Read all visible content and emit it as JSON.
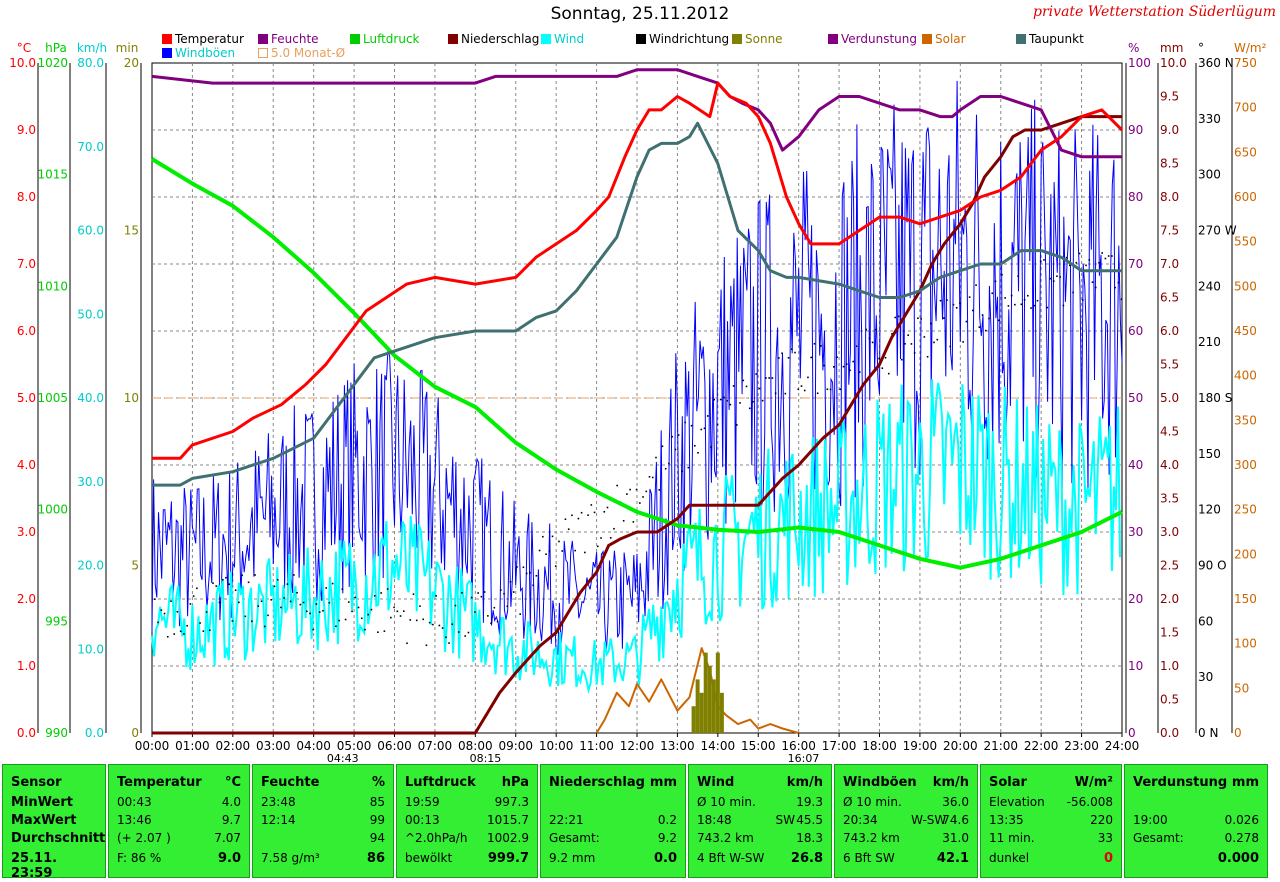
{
  "title": "Sonntag, 25.11.2012",
  "station": "private Wetterstation Süderlügum",
  "legend": [
    {
      "label": "Temperatur",
      "color": "#ff0000"
    },
    {
      "label": "Feuchte",
      "color": "#800080"
    },
    {
      "label": "Luftdruck",
      "color": "#00cc00"
    },
    {
      "label": "Niederschlag",
      "color": "#800000"
    },
    {
      "label": "Wind",
      "color": "#00ffff"
    },
    {
      "label": "Windrichtung",
      "color": "#000000"
    },
    {
      "label": "Sonne",
      "color": "#808000"
    },
    {
      "label": "Verdunstung",
      "color": "#800080"
    },
    {
      "label": "Solar",
      "color": "#cc6600"
    },
    {
      "label": "Taupunkt",
      "color": "#407070"
    },
    {
      "label": "Windböen",
      "color": "#0000ff"
    },
    {
      "label": "5.0 Monat-Ø",
      "color": "#e8a060"
    }
  ],
  "chart_data": {
    "type": "line",
    "x_ticks": [
      "00:00",
      "01:00",
      "02:00",
      "03:00",
      "04:00",
      "05:00",
      "06:00",
      "07:00",
      "08:00",
      "09:00",
      "10:00",
      "11:00",
      "12:00",
      "13:00",
      "14:00",
      "15:00",
      "16:00",
      "17:00",
      "18:00",
      "19:00",
      "20:00",
      "21:00",
      "22:00",
      "23:00",
      "24:00"
    ],
    "markers": [
      "04:43",
      "08:15",
      "16:07"
    ],
    "left_axes": [
      {
        "unit": "°C",
        "color": "#ff0000",
        "ticks": [
          "10.0",
          "9.0",
          "8.0",
          "7.0",
          "6.0",
          "5.0",
          "4.0",
          "3.0",
          "2.0",
          "1.0",
          "0.0"
        ]
      },
      {
        "unit": "hPa",
        "color": "#00cc00",
        "ticks": [
          "1020",
          "1015",
          "1010",
          "1005",
          "1000",
          "995",
          "990"
        ]
      },
      {
        "unit": "km/h",
        "color": "#00cccc",
        "ticks": [
          "80.0",
          "70.0",
          "60.0",
          "50.0",
          "40.0",
          "30.0",
          "20.0",
          "10.0",
          "0.0"
        ]
      },
      {
        "unit": "min",
        "color": "#808000",
        "ticks": [
          "20",
          "15",
          "10",
          "5",
          "0"
        ]
      }
    ],
    "right_axes": [
      {
        "unit": "%",
        "color": "#800080",
        "ticks": [
          "100",
          "90",
          "80",
          "70",
          "60",
          "50",
          "40",
          "30",
          "20",
          "10",
          "0"
        ]
      },
      {
        "unit": "mm",
        "color": "#800000",
        "ticks": [
          "10.0",
          "9.5",
          "9.0",
          "8.5",
          "8.0",
          "7.5",
          "7.0",
          "6.5",
          "6.0",
          "5.5",
          "5.0",
          "4.5",
          "4.0",
          "3.5",
          "3.0",
          "2.5",
          "2.0",
          "1.5",
          "1.0",
          "0.5",
          "0.0"
        ]
      },
      {
        "unit": "°",
        "color": "#000000",
        "ticks": [
          "360 N",
          "330",
          "300",
          "270 W",
          "240",
          "210",
          "180 S",
          "150",
          "120",
          "90 O",
          "60",
          "30",
          "0 N"
        ]
      },
      {
        "unit": "W/m²",
        "color": "#cc6600",
        "ticks": [
          "750",
          "700",
          "650",
          "600",
          "550",
          "500",
          "450",
          "400",
          "350",
          "300",
          "250",
          "200",
          "150",
          "100",
          "50",
          "0"
        ]
      }
    ],
    "month_avg_temp": 5.0,
    "series": [
      {
        "name": "Temperatur",
        "unit": "°C",
        "x": [
          0,
          0.7,
          1.0,
          2.0,
          2.5,
          3.2,
          3.8,
          4.3,
          4.8,
          5.3,
          5.8,
          6.3,
          7.0,
          8.0,
          9.0,
          9.5,
          10.0,
          10.5,
          11.0,
          11.3,
          11.7,
          12.0,
          12.3,
          12.6,
          13.0,
          13.3,
          13.8,
          14.0,
          14.3,
          14.7,
          15.0,
          15.3,
          15.7,
          16.0,
          16.3,
          16.7,
          17.0,
          17.5,
          18.0,
          18.5,
          19.0,
          19.5,
          20.0,
          20.5,
          21.0,
          21.5,
          22.0,
          22.5,
          23.0,
          23.5,
          24.0
        ],
        "y": [
          4.1,
          4.1,
          4.3,
          4.5,
          4.7,
          4.9,
          5.2,
          5.5,
          5.9,
          6.3,
          6.5,
          6.7,
          6.8,
          6.7,
          6.8,
          7.1,
          7.3,
          7.5,
          7.8,
          8.0,
          8.6,
          9.0,
          9.3,
          9.3,
          9.5,
          9.4,
          9.2,
          9.7,
          9.5,
          9.4,
          9.2,
          8.8,
          8.0,
          7.6,
          7.3,
          7.3,
          7.3,
          7.5,
          7.7,
          7.7,
          7.6,
          7.7,
          7.8,
          8.0,
          8.1,
          8.3,
          8.7,
          8.9,
          9.2,
          9.3,
          9.0
        ]
      },
      {
        "name": "Taupunkt",
        "unit": "°C",
        "x": [
          0,
          0.7,
          1.0,
          2.0,
          3.0,
          4.0,
          4.5,
          5.0,
          5.5,
          6.0,
          7.0,
          8.0,
          8.5,
          9.0,
          9.5,
          10.0,
          10.5,
          11.0,
          11.5,
          12.0,
          12.3,
          12.6,
          13.0,
          13.3,
          13.5,
          14.0,
          14.5,
          15.0,
          15.3,
          15.7,
          16.0,
          17.0,
          17.5,
          18.0,
          18.5,
          19.0,
          19.5,
          20.0,
          20.5,
          21.0,
          21.5,
          22.0,
          22.5,
          23.0,
          23.5,
          24.0
        ],
        "y": [
          3.7,
          3.7,
          3.8,
          3.9,
          4.1,
          4.4,
          4.8,
          5.2,
          5.6,
          5.7,
          5.9,
          6.0,
          6.0,
          6.0,
          6.2,
          6.3,
          6.6,
          7.0,
          7.4,
          8.3,
          8.7,
          8.8,
          8.8,
          8.9,
          9.1,
          8.5,
          7.5,
          7.2,
          6.9,
          6.8,
          6.8,
          6.7,
          6.6,
          6.5,
          6.5,
          6.6,
          6.8,
          6.9,
          7.0,
          7.0,
          7.2,
          7.2,
          7.1,
          6.9,
          6.9,
          6.9
        ]
      },
      {
        "name": "Feuchte",
        "unit": "%",
        "x": [
          0,
          1.5,
          2.0,
          4.0,
          6.0,
          8.0,
          8.5,
          10.0,
          11.5,
          12.0,
          12.5,
          13.0,
          13.5,
          14.0,
          14.3,
          14.6,
          15.0,
          15.3,
          15.6,
          16.0,
          16.5,
          17.0,
          17.5,
          18.0,
          18.5,
          19.0,
          19.5,
          19.8,
          20.0,
          20.5,
          21.0,
          21.5,
          22.0,
          22.5,
          23.0,
          23.5,
          24.0
        ],
        "y": [
          98,
          97,
          97,
          97,
          97,
          97,
          98,
          98,
          98,
          99,
          99,
          99,
          98,
          97,
          95,
          94,
          93,
          91,
          87,
          89,
          93,
          95,
          95,
          94,
          93,
          93,
          92,
          92,
          93,
          95,
          95,
          94,
          93,
          87,
          86,
          86,
          86
        ]
      },
      {
        "name": "Luftdruck",
        "unit": "hPa",
        "x": [
          0,
          1.0,
          2.0,
          3.0,
          4.0,
          5.0,
          6.0,
          7.0,
          8.0,
          9.0,
          10.0,
          11.0,
          12.0,
          13.0,
          14.0,
          15.0,
          16.0,
          17.0,
          18.0,
          19.0,
          20.0,
          21.0,
          22.0,
          23.0,
          24.0
        ],
        "y": [
          1015.7,
          1014.6,
          1013.6,
          1012.2,
          1010.6,
          1008.8,
          1006.9,
          1005.5,
          1004.6,
          1003.0,
          1001.8,
          1000.8,
          999.9,
          999.3,
          999.1,
          999.0,
          999.2,
          999.0,
          998.4,
          997.8,
          997.4,
          997.8,
          998.4,
          999.0,
          999.9
        ]
      },
      {
        "name": "Niederschlag",
        "unit": "mm",
        "x": [
          0,
          8.0,
          8.3,
          8.6,
          9.0,
          9.3,
          9.6,
          10.0,
          10.3,
          10.6,
          11.0,
          11.3,
          11.6,
          12.0,
          12.5,
          13.0,
          13.3,
          13.6,
          14.0,
          14.5,
          15.0,
          15.3,
          15.6,
          16.0,
          16.3,
          16.6,
          17.0,
          17.3,
          17.6,
          18.0,
          18.3,
          18.6,
          19.0,
          19.3,
          19.6,
          20.0,
          20.3,
          20.6,
          21.0,
          21.3,
          21.6,
          22.0,
          22.5,
          23.0,
          24.0
        ],
        "y": [
          0,
          0,
          0.3,
          0.6,
          0.9,
          1.1,
          1.3,
          1.5,
          1.8,
          2.1,
          2.4,
          2.8,
          2.9,
          3.0,
          3.0,
          3.2,
          3.4,
          3.4,
          3.4,
          3.4,
          3.4,
          3.6,
          3.8,
          4.0,
          4.2,
          4.4,
          4.6,
          4.9,
          5.2,
          5.5,
          5.9,
          6.2,
          6.6,
          7.0,
          7.3,
          7.6,
          7.9,
          8.3,
          8.6,
          8.9,
          9.0,
          9.0,
          9.1,
          9.2,
          9.2
        ]
      },
      {
        "name": "Wind",
        "unit": "km/h",
        "x": [
          0,
          1,
          2,
          3,
          4,
          5,
          6,
          7,
          8,
          9,
          10,
          11,
          12,
          13,
          14,
          15,
          16,
          17,
          18,
          19,
          20,
          21,
          22,
          23,
          24
        ],
        "y": [
          14,
          12,
          14,
          15,
          16,
          18,
          20,
          17,
          13,
          10,
          9,
          8,
          9,
          18,
          22,
          24,
          26,
          27,
          30,
          31,
          32,
          30,
          28,
          27,
          29
        ]
      },
      {
        "name": "Windböen",
        "unit": "km/h",
        "x": [
          0,
          1,
          2,
          3,
          4,
          5,
          6,
          7,
          8,
          9,
          10,
          11,
          12,
          13,
          14,
          15,
          16,
          17,
          18,
          19,
          20,
          21,
          22,
          23,
          24
        ],
        "y": [
          22,
          21,
          23,
          26,
          28,
          31,
          32,
          29,
          24,
          19,
          17,
          15,
          16,
          33,
          41,
          45,
          47,
          49,
          52,
          54,
          56,
          54,
          52,
          50,
          53
        ]
      },
      {
        "name": "Windrichtung",
        "unit": "°",
        "x": [
          0,
          1,
          2,
          3,
          4,
          5,
          6,
          7,
          8,
          9,
          10,
          11,
          12,
          13,
          14,
          15,
          16,
          17,
          18,
          19,
          20,
          21,
          22,
          23,
          24
        ],
        "y": [
          65,
          68,
          70,
          72,
          70,
          68,
          65,
          60,
          62,
          75,
          100,
          115,
          130,
          150,
          170,
          185,
          195,
          200,
          205,
          215,
          225,
          235,
          240,
          245,
          245
        ]
      },
      {
        "name": "Solar",
        "unit": "W/m²",
        "x": [
          11.0,
          11.2,
          11.5,
          11.8,
          12.0,
          12.3,
          12.6,
          13.0,
          13.3,
          13.6,
          13.8,
          14.0,
          14.2,
          14.5,
          14.8,
          15.0,
          15.3,
          15.6,
          16.0
        ],
        "y": [
          0,
          15,
          45,
          30,
          55,
          35,
          60,
          25,
          40,
          95,
          70,
          30,
          20,
          10,
          15,
          5,
          10,
          5,
          0
        ]
      },
      {
        "name": "Sonne",
        "unit": "min",
        "x": [
          13.4,
          13.5,
          13.6,
          13.7,
          13.8,
          13.9,
          14.0,
          14.1
        ],
        "y": [
          0.2,
          0.4,
          0.3,
          0.6,
          0.5,
          0.4,
          0.6,
          0.3
        ]
      }
    ]
  },
  "table": {
    "date": "25.11. 23:59",
    "rows": [
      "MinWert",
      "MaxWert",
      "Durchschnitt"
    ],
    "sensor_label": "Sensor",
    "temperature": {
      "head": "Temperatur",
      "unit": "°C",
      "min_time": "00:43",
      "min": "4.0",
      "max_time": "13:46",
      "max": "9.7",
      "avg_note": "(+ 2.07 )",
      "avg": "7.07",
      "f_label": "F: 86 %",
      "current": "9.0"
    },
    "humidity": {
      "head": "Feuchte",
      "unit": "%",
      "min_time": "23:48",
      "min": "85",
      "max_time": "12:14",
      "max": "99",
      "avg": "94",
      "abs": "7.58 g/m³",
      "current": "86"
    },
    "pressure": {
      "head": "Luftdruck",
      "unit": "hPa",
      "min_time": "19:59",
      "min": "997.3",
      "max_time": "00:13",
      "max": "1015.7",
      "avg_note": "^2.0hPa/h",
      "avg": "1002.9",
      "cloud": "bewölkt",
      "current": "999.7"
    },
    "rain": {
      "head": "Niederschlag",
      "unit": "mm",
      "max_time": "22:21",
      "max": "0.2",
      "total_label": "Gesamt:",
      "total": "9.2",
      "sum": "9.2 mm",
      "current": "0.0"
    },
    "wind": {
      "head": "Wind",
      "unit": "km/h",
      "r1a": "Ø 10 min.",
      "r1b": "19.3",
      "r2a": "18:48",
      "r2m": "SW",
      "r2b": "45.5",
      "r3a": "743.2 km",
      "r3b": "18.3",
      "r4a": "4 Bft W-SW",
      "r4b": "26.8"
    },
    "gusts": {
      "head": "Windböen",
      "unit": "km/h",
      "r1a": "Ø 10 min.",
      "r1b": "36.0",
      "r2a": "20:34",
      "r2m": "W-SW",
      "r2b": "74.6",
      "r3a": "743.2 km",
      "r3b": "31.0",
      "r4a": "6 Bft SW",
      "r4b": "42.1"
    },
    "solar": {
      "head": "Solar",
      "unit": "W/m²",
      "r1a": "Elevation",
      "r1b": "-56.008",
      "r2a": "13:35",
      "r2b": "220",
      "r3a": "11 min.",
      "r3b": "33",
      "r4a": "dunkel",
      "r4b": "0"
    },
    "evap": {
      "head": "Verdunstung",
      "unit": "mm",
      "r2a": "19:00",
      "r2b": "0.026",
      "r3a": "Gesamt:",
      "r3b": "0.278",
      "r4b": "0.000"
    }
  }
}
